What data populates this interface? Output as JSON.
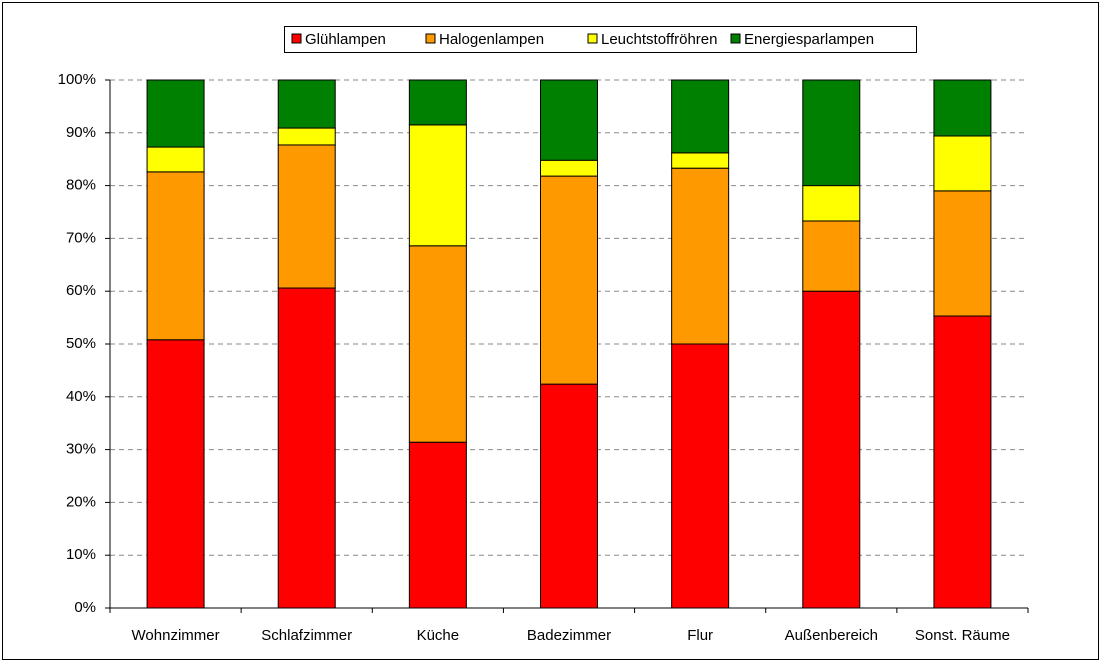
{
  "chart_data": {
    "type": "stacked_bar",
    "categories": [
      "Wohnzimmer",
      "Schlafzimmer",
      "Küche",
      "Badezimmer",
      "Flur",
      "Außenbereich",
      "Sonst. Räume"
    ],
    "series": [
      {
        "name": "Glühlampen",
        "color": "#ff0000",
        "values": [
          50.8,
          60.6,
          31.4,
          42.4,
          50.0,
          60.0,
          55.3
        ]
      },
      {
        "name": "Halogenlampen",
        "color": "#ff9900",
        "values": [
          31.8,
          27.1,
          37.2,
          39.4,
          33.3,
          13.3,
          23.7
        ]
      },
      {
        "name": "Leuchtstoffröhren",
        "color": "#ffff00",
        "values": [
          4.7,
          3.2,
          22.9,
          3.0,
          2.9,
          6.7,
          10.4
        ]
      },
      {
        "name": "Energiesparlampen",
        "color": "#008000",
        "values": [
          12.7,
          9.1,
          8.5,
          15.2,
          13.8,
          20.0,
          10.6
        ]
      }
    ],
    "ylim": [
      0,
      100
    ],
    "yticks": [
      {
        "value": 0,
        "label": "0%"
      },
      {
        "value": 10,
        "label": "10%"
      },
      {
        "value": 20,
        "label": "20%"
      },
      {
        "value": 30,
        "label": "30%"
      },
      {
        "value": 40,
        "label": "40%"
      },
      {
        "value": 50,
        "label": "50%"
      },
      {
        "value": 60,
        "label": "60%"
      },
      {
        "value": 70,
        "label": "70%"
      },
      {
        "value": 80,
        "label": "80%"
      },
      {
        "value": 90,
        "label": "90%"
      },
      {
        "value": 100,
        "label": "100%"
      }
    ],
    "grid": true,
    "legend": "top"
  }
}
